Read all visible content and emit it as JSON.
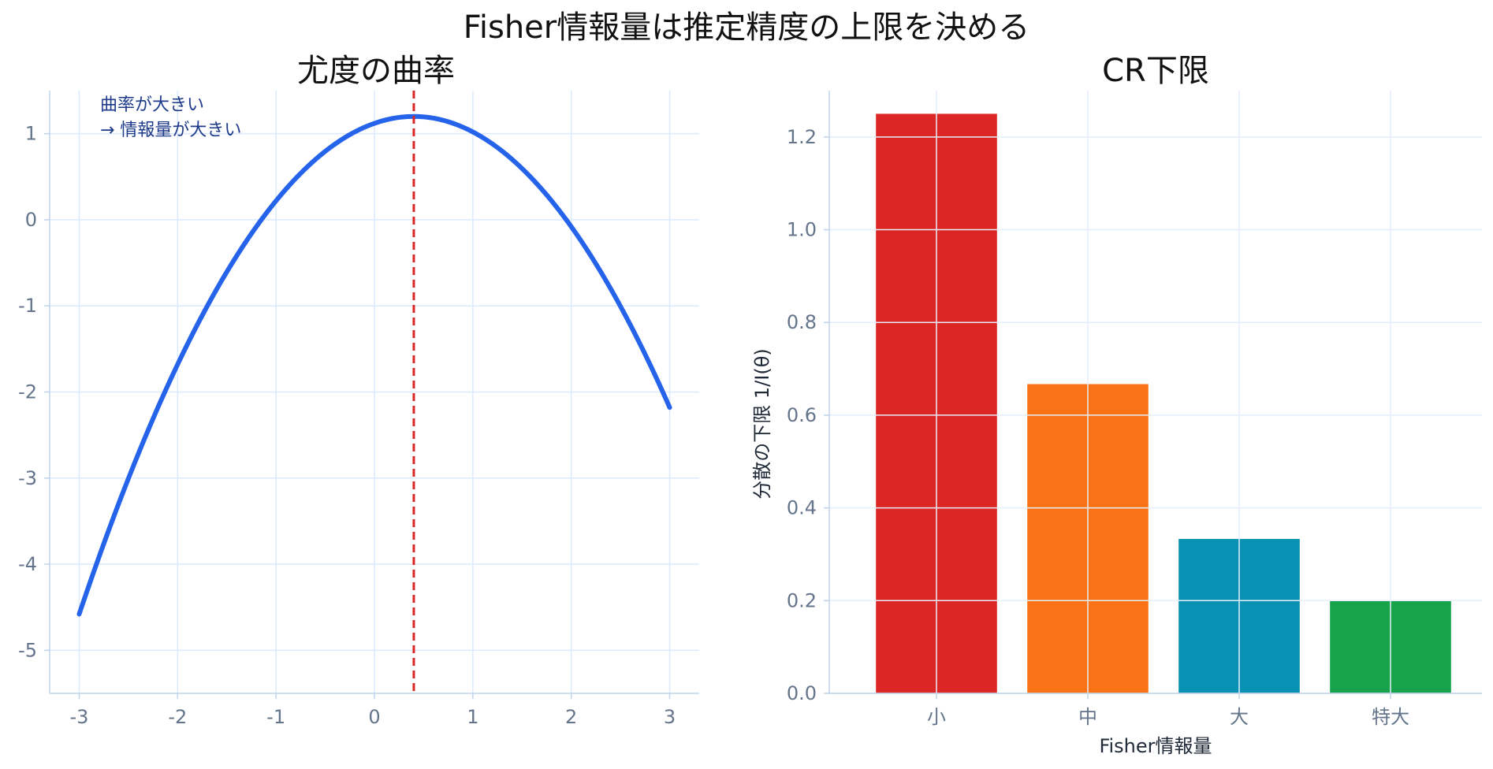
{
  "figure": {
    "suptitle": "Fisher情報量は推定精度の上限を決める"
  },
  "chart_data": [
    {
      "type": "line",
      "title": "尤度の曲率",
      "xlabel": "",
      "ylabel": "",
      "xlim": [
        -3.3,
        3.3
      ],
      "ylim": [
        -5.5,
        1.5
      ],
      "xticks": [
        -3,
        -2,
        -1,
        0,
        1,
        2,
        3
      ],
      "yticks": [
        -5,
        -4,
        -3,
        -2,
        -1,
        0,
        1
      ],
      "grid": true,
      "series": [
        {
          "curve": "quadratic",
          "peak_x": 0.4,
          "peak_y": 1.2,
          "curvature": 0.5,
          "x_range": [
            -3,
            3
          ],
          "color": "#2563eb"
        }
      ],
      "vline": {
        "x": 0.4,
        "color": "#dc2626",
        "style": "dashed"
      },
      "annotation": {
        "lines": [
          "曲率が大きい",
          "→ 情報量が大きい"
        ],
        "color": "#1e3a8a"
      }
    },
    {
      "type": "bar",
      "title": "CR下限",
      "xlabel": "Fisher情報量",
      "ylabel": "分散の下限 1/I(θ)",
      "categories": [
        "小",
        "中",
        "大",
        "特大"
      ],
      "values": [
        1.25,
        0.667,
        0.333,
        0.2
      ],
      "colors": [
        "#dc2626",
        "#f97316",
        "#0891b2",
        "#16a34a"
      ],
      "ylim": [
        0,
        1.3
      ],
      "yticks": [
        0.0,
        0.2,
        0.4,
        0.6,
        0.8,
        1.0,
        1.2
      ],
      "grid": true
    }
  ]
}
